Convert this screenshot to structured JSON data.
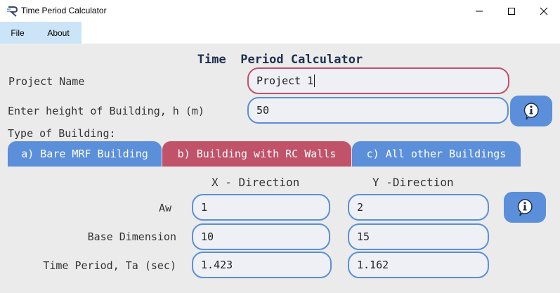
{
  "window": {
    "title": "Time Period Calculator"
  },
  "menu": [
    {
      "label": "File"
    },
    {
      "label": "About"
    }
  ],
  "heading": "Time  Period Calculator",
  "form": {
    "project_name_label": "Project Name",
    "project_name_value": "Project 1",
    "height_label": "Enter height of Building, h (m)",
    "height_value": "50",
    "type_label": "Type of Building:"
  },
  "tabs": [
    {
      "label": "a) Bare MRF Building",
      "selected": false
    },
    {
      "label": "b) Building with RC Walls",
      "selected": true
    },
    {
      "label": "c) All other Buildings",
      "selected": false
    }
  ],
  "table": {
    "col_x": "X - Direction",
    "col_y": "Y -Direction",
    "rows": [
      {
        "label": "Aw",
        "x": "1",
        "y": "2"
      },
      {
        "label": "Base Dimension",
        "x": "10",
        "y": "15"
      },
      {
        "label": "Time Period, Ta (sec)",
        "x": "1.423",
        "y": "1.162"
      }
    ]
  },
  "colors": {
    "accent": "#5b8fd9",
    "selected": "#c0526a",
    "background": "#ebebeb"
  }
}
